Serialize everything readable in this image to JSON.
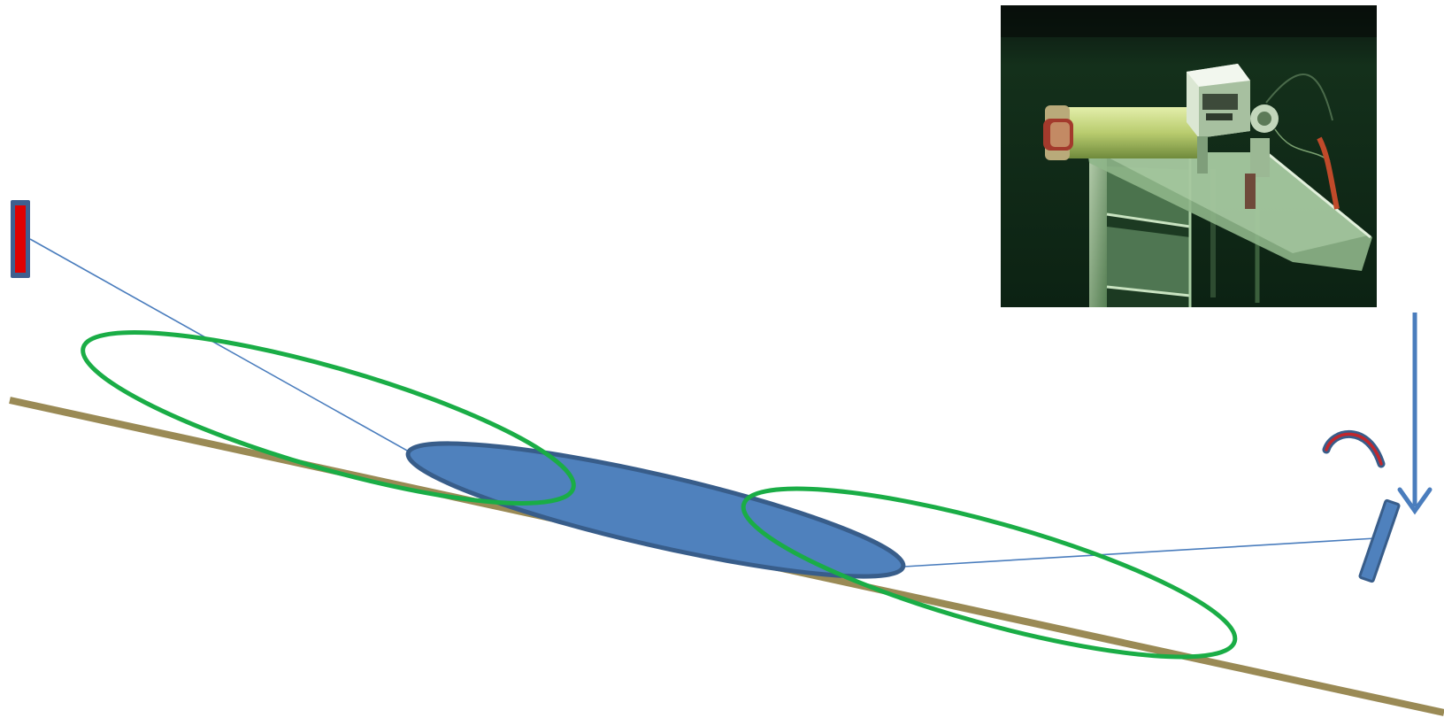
{
  "diagram": {
    "colors": {
      "seabed": "#9a8a55",
      "beam_line": "#4a7dbd",
      "footprint_fill": "#4f81bd",
      "footprint_stroke": "#385d8a",
      "swath": "#1aad46",
      "source": "#e00000",
      "source_border": "#3f5f8f",
      "receiver": "#4f81bd",
      "arrow": "#4a7dbd",
      "rotation_arc": "#c0272d"
    },
    "icons": {
      "source": "source-transducer-icon",
      "receiver": "receiver-transducer-icon",
      "arrow": "down-arrow-icon",
      "rotation": "rotation-arc-icon"
    }
  },
  "photo": {
    "description_icon": "underwater-sonar-instrument-photo",
    "colors": {
      "water": "#0d2415",
      "frame": "#9cc59a",
      "tube": "#c8d88a",
      "housing": "#d9e4cf",
      "cable": "#c04a2a"
    }
  }
}
